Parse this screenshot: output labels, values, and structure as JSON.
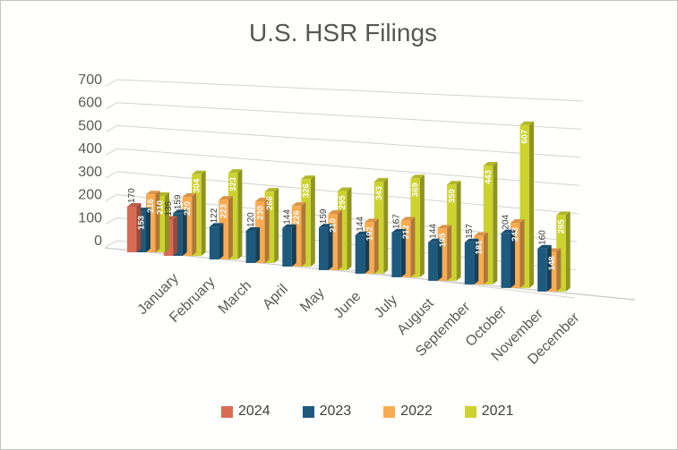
{
  "title": "U.S. HSR Filings",
  "chart_data": {
    "type": "bar",
    "style": "3d-clustered-column",
    "title": "U.S. HSR Filings",
    "categories": [
      "January",
      "February",
      "March",
      "April",
      "May",
      "June",
      "July",
      "August",
      "September",
      "October",
      "November",
      "December"
    ],
    "series": [
      {
        "name": "2024",
        "color": "#d96b55",
        "values": [
          170,
          135,
          null,
          null,
          null,
          null,
          null,
          null,
          null,
          null,
          null,
          null
        ],
        "label_inside": [
          false,
          false,
          false,
          false,
          false,
          false,
          false,
          false,
          false,
          false,
          false,
          false
        ]
      },
      {
        "name": "2023",
        "color": "#1e5a7e",
        "values": [
          153,
          159,
          122,
          120,
          144,
          159,
          144,
          167,
          144,
          157,
          204,
          160
        ],
        "label_inside": [
          true,
          false,
          false,
          false,
          false,
          false,
          false,
          false,
          false,
          false,
          false,
          false
        ]
      },
      {
        "name": "2022",
        "color": "#faab51",
        "values": [
          216,
          220,
          223,
          230,
          226,
          210,
          192,
          212,
          195,
          181,
          243,
          148
        ],
        "label_inside": [
          true,
          true,
          true,
          true,
          true,
          true,
          true,
          true,
          true,
          true,
          true,
          true
        ]
      },
      {
        "name": "2021",
        "color": "#ccd32f",
        "values": [
          210,
          304,
          323,
          266,
          326,
          295,
          343,
          369,
          359,
          443,
          607,
          285
        ],
        "label_inside": [
          true,
          true,
          true,
          true,
          true,
          true,
          true,
          true,
          true,
          true,
          true,
          true
        ]
      }
    ],
    "y_ticks": [
      0,
      100,
      200,
      300,
      400,
      500,
      600,
      700
    ],
    "ylim": [
      0,
      700
    ],
    "gridlines": true,
    "legend_position": "bottom",
    "label_color_inside": "#ffffff",
    "label_color_outside": "#3b3b3b",
    "axis_text_color": "#595959",
    "title_color": "#565656",
    "gridline_color": "#d2d2d2"
  },
  "legend": {
    "items": [
      {
        "label": "2024",
        "color": "#d96b55"
      },
      {
        "label": "2023",
        "color": "#1e5a7e"
      },
      {
        "label": "2022",
        "color": "#faab51"
      },
      {
        "label": "2021",
        "color": "#ccd32f"
      }
    ]
  }
}
